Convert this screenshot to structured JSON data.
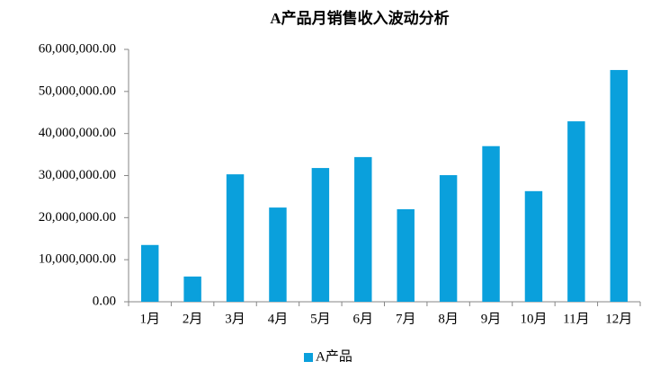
{
  "chart_data": {
    "type": "bar",
    "title": "A产品月销售收入波动分析",
    "categories": [
      "1月",
      "2月",
      "3月",
      "4月",
      "5月",
      "6月",
      "7月",
      "8月",
      "9月",
      "10月",
      "11月",
      "12月"
    ],
    "series": [
      {
        "name": "A产品",
        "color": "#0aa0dc",
        "values": [
          13500000,
          6000000,
          30300000,
          22400000,
          31800000,
          34400000,
          22000000,
          30100000,
          37000000,
          26300000,
          42900000,
          55100000
        ]
      }
    ],
    "ylim": [
      0,
      60000000
    ],
    "yticks": [
      {
        "value": 0,
        "label": "0.00"
      },
      {
        "value": 10000000,
        "label": "10,000,000.00"
      },
      {
        "value": 20000000,
        "label": "20,000,000.00"
      },
      {
        "value": 30000000,
        "label": "30,000,000.00"
      },
      {
        "value": 40000000,
        "label": "40,000,000.00"
      },
      {
        "value": 50000000,
        "label": "50,000,000.00"
      },
      {
        "value": 60000000,
        "label": "60,000,000.00"
      }
    ],
    "grid": false,
    "legend": "bottom"
  }
}
